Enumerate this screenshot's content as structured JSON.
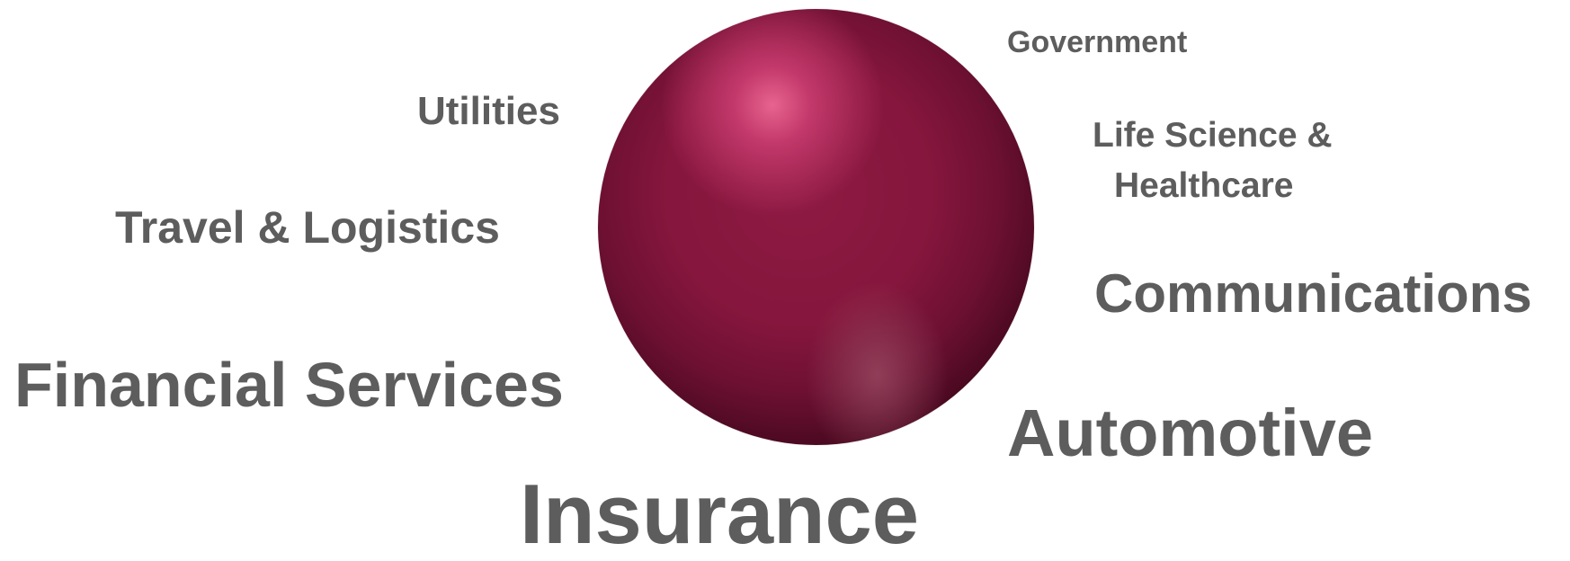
{
  "diagram": {
    "center": {
      "shape": "sphere",
      "color": "#8d1a42",
      "highlight_color": "#e8648f"
    },
    "label_color": "#5d5d5d",
    "labels": {
      "government": "Government",
      "utilities": "Utilities",
      "life_science_line1": "Life Science &",
      "life_science_line2": "Healthcare",
      "travel": "Travel & Logistics",
      "communications": "Communications",
      "financial": "Financial Services",
      "automotive": "Automotive",
      "insurance": "Insurance"
    }
  }
}
